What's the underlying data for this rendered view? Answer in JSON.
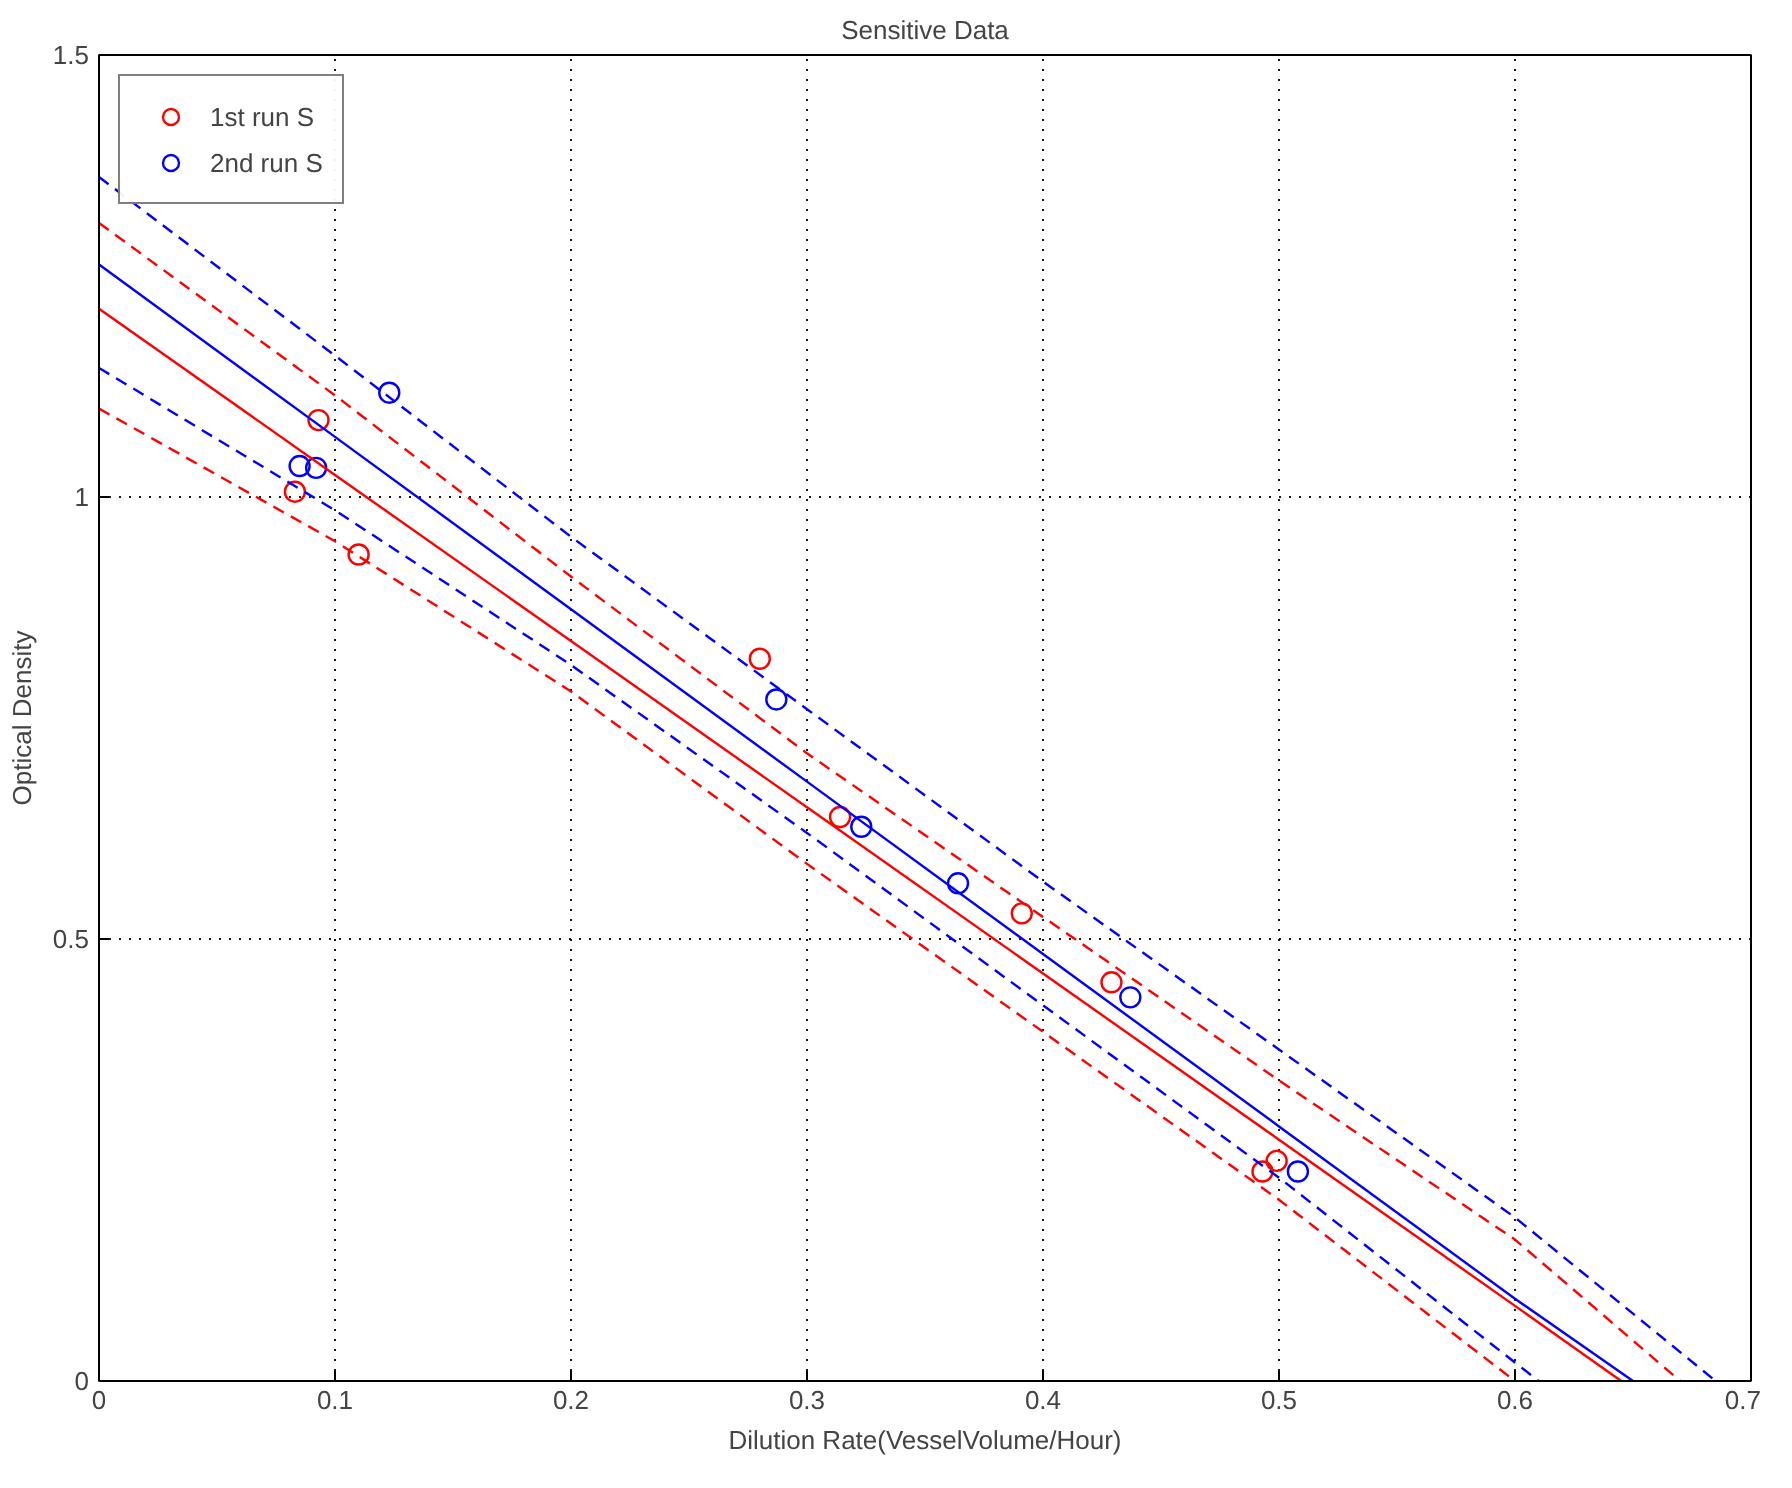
{
  "chart_data": {
    "type": "scatter",
    "title": "Sensitive Data",
    "xlabel": "Dilution Rate(VesselVolume/Hour)",
    "ylabel": "Optical Density",
    "xlim": [
      0,
      0.7
    ],
    "ylim": [
      0,
      1.5
    ],
    "xticks": [
      0,
      0.1,
      0.2,
      0.3,
      0.4,
      0.5,
      0.6,
      0.7
    ],
    "yticks": [
      0,
      0.5,
      1,
      1.5
    ],
    "grid": true,
    "legend": "top left",
    "marker": "circle",
    "series": [
      {
        "name": "1st run S",
        "color": "#ff0000",
        "x": [
          0.083,
          0.093,
          0.11,
          0.28,
          0.314,
          0.391,
          0.429,
          0.493,
          0.499
        ],
        "values": [
          1.006,
          1.087,
          0.935,
          0.817,
          0.638,
          0.529,
          0.451,
          0.237,
          0.249
        ]
      },
      {
        "name": "2nd run S",
        "color": "#0000ff",
        "x": [
          0.085,
          0.092,
          0.123,
          0.287,
          0.323,
          0.364,
          0.437,
          0.508
        ],
        "values": [
          1.035,
          1.033,
          1.118,
          0.771,
          0.627,
          0.563,
          0.434,
          0.237
        ]
      },
      {
        "type": "line",
        "marker": "none",
        "line_style": "solid",
        "color": "#ff0000",
        "x": [
          0,
          0.1,
          0.2,
          0.3,
          0.4,
          0.5,
          0.6,
          0.645
        ],
        "values": [
          1.213,
          1.025,
          0.837,
          0.649,
          0.461,
          0.273,
          0.085,
          0.0
        ]
      },
      {
        "type": "line",
        "marker": "none",
        "line_style": "dashed",
        "color": "#ff0000",
        "x": [
          0,
          0.1,
          0.2,
          0.3,
          0.4,
          0.5,
          0.6,
          0.67
        ],
        "values": [
          1.31,
          1.115,
          0.91,
          0.71,
          0.525,
          0.34,
          0.16,
          0.0
        ]
      },
      {
        "type": "line",
        "marker": "none",
        "line_style": "dashed",
        "color": "#ff0000",
        "x": [
          0,
          0.1,
          0.2,
          0.3,
          0.4,
          0.5,
          0.6
        ],
        "values": [
          1.1,
          0.95,
          0.78,
          0.585,
          0.395,
          0.205,
          0.0
        ]
      },
      {
        "type": "line",
        "marker": "none",
        "line_style": "solid",
        "color": "#0000ff",
        "x": [
          0,
          0.1,
          0.2,
          0.3,
          0.4,
          0.5,
          0.6,
          0.65
        ],
        "values": [
          1.263,
          1.068,
          0.873,
          0.678,
          0.483,
          0.288,
          0.093,
          0.0
        ]
      },
      {
        "type": "line",
        "marker": "none",
        "line_style": "dashed",
        "color": "#0000ff",
        "x": [
          0,
          0.1,
          0.2,
          0.3,
          0.4,
          0.5,
          0.6,
          0.685
        ],
        "values": [
          1.362,
          1.16,
          0.955,
          0.76,
          0.565,
          0.375,
          0.185,
          0.0
        ]
      },
      {
        "type": "line",
        "marker": "none",
        "line_style": "dashed",
        "color": "#0000ff",
        "x": [
          0,
          0.1,
          0.2,
          0.3,
          0.4,
          0.5,
          0.61
        ],
        "values": [
          1.146,
          0.985,
          0.81,
          0.62,
          0.425,
          0.23,
          0.0
        ]
      }
    ]
  }
}
